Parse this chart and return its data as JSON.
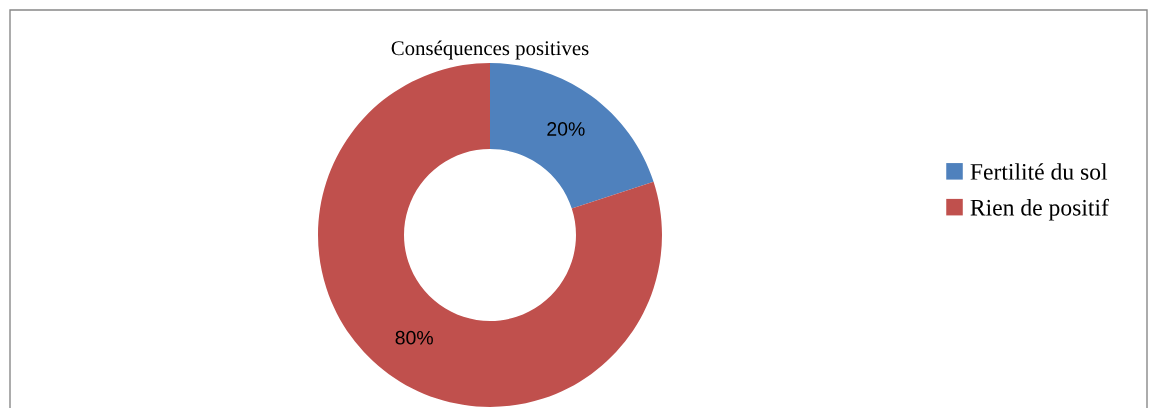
{
  "chart_data": {
    "type": "donut",
    "title": "Conséquences positives",
    "categories": [
      "Fertilité du sol",
      "Rien de positif"
    ],
    "values": [
      20,
      80
    ],
    "colors": [
      "#4f81bd",
      "#c0504d"
    ],
    "value_labels": [
      "20%",
      "80%"
    ],
    "legend": "right"
  }
}
